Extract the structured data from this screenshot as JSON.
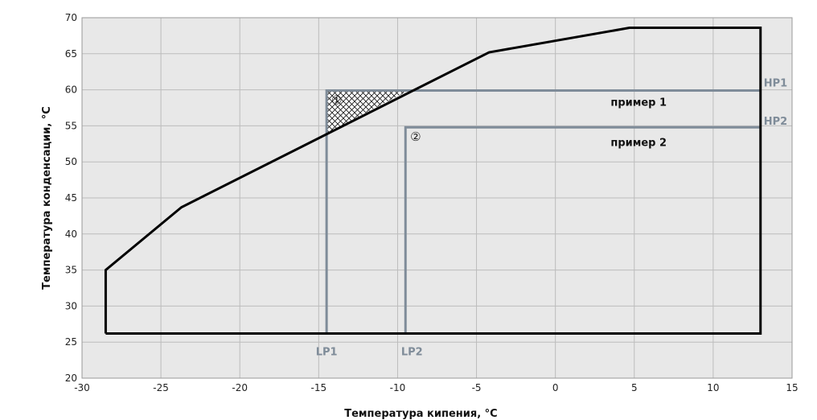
{
  "chart_data": {
    "type": "line",
    "xlabel": "Температура кипения, °C",
    "ylabel": "Температура конденсации, °C",
    "xlim": [
      -30,
      15
    ],
    "ylim": [
      20,
      70
    ],
    "x_ticks": [
      "-30",
      "-25",
      "-20",
      "-15",
      "-10",
      "-5",
      "0",
      "5",
      "10",
      "15"
    ],
    "y_ticks": [
      "20",
      "25",
      "30",
      "35",
      "40",
      "45",
      "50",
      "55",
      "60",
      "65",
      "70"
    ],
    "grid": true,
    "envelope": {
      "x": [
        -28.5,
        -28.5,
        -23.7,
        -4.2,
        4.7,
        13.0,
        13.0,
        -28.5
      ],
      "y": [
        26.2,
        35.0,
        43.7,
        65.2,
        68.6,
        68.6,
        26.2,
        26.2
      ]
    },
    "example1": {
      "lp_x": -14.5,
      "hp_y": 59.9,
      "lp_label": "LP1",
      "hp_label": "HP1",
      "label": "пример 1",
      "marker": "①"
    },
    "example2": {
      "lp_x": -9.5,
      "hp_y": 54.8,
      "lp_label": "LP2",
      "hp_label": "HP2",
      "label": "пример 2",
      "marker": "②"
    },
    "hatched_region": {
      "x": [
        -14.5,
        -14.5,
        -9.3
      ],
      "y": [
        59.9,
        54.0,
        59.9
      ]
    },
    "colors": {
      "envelope": "#000000",
      "example_lines": "#7f8c99",
      "grid": "#bcbcbc",
      "plot_bg": "#e8e8e8"
    }
  }
}
